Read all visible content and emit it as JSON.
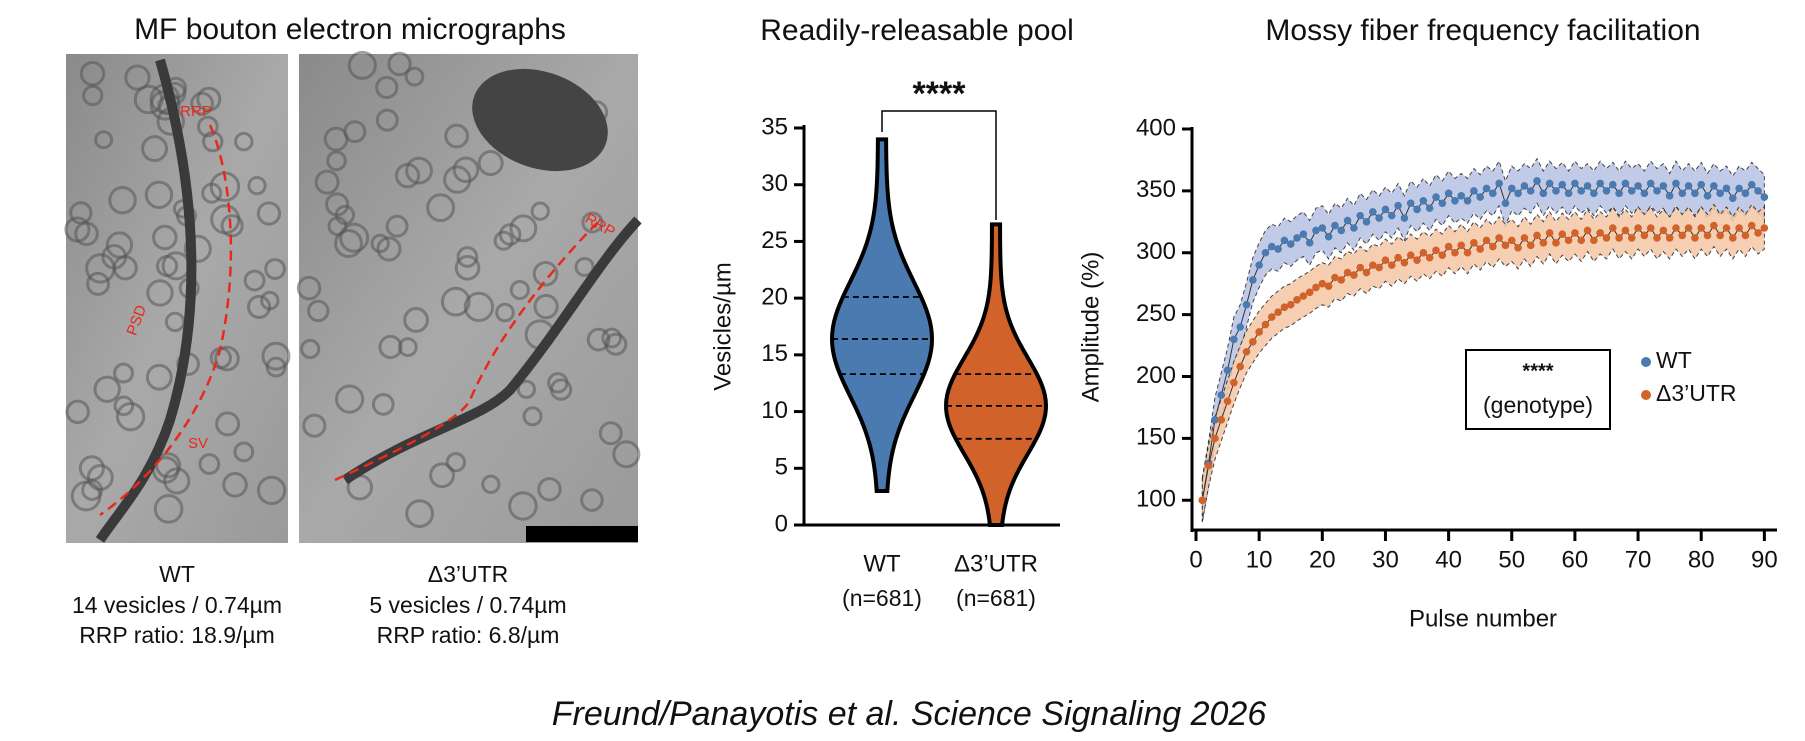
{
  "micrographs": {
    "title": "MF bouton electron micrographs",
    "annotations": [
      "RRP",
      "PSD",
      "SV",
      "RRP"
    ],
    "panels": [
      {
        "label": "WT",
        "vesicles": "14 vesicles / 0.74µm",
        "ratio": "RRP ratio: 18.9/µm"
      },
      {
        "label": "Δ3’UTR",
        "vesicles": "5 vesicles / 0.74µm",
        "ratio": "RRP ratio: 6.8/µm"
      }
    ]
  },
  "chart_data": [
    {
      "type": "violin",
      "title": "Readily-releasable pool",
      "ylabel": "Vesicles/µm",
      "categories": [
        "WT",
        "Δ3’UTR"
      ],
      "sublabels": [
        "(n=681)",
        "(n=681)"
      ],
      "colors": [
        "#4a7ab0",
        "#d1622a"
      ],
      "min": [
        3,
        0
      ],
      "q1": [
        13.3,
        7.6
      ],
      "median": [
        16.4,
        10.5
      ],
      "q3": [
        20.1,
        13.3
      ],
      "max": [
        34,
        26.5
      ],
      "significance": "****",
      "ylim": [
        0,
        35
      ],
      "yticks": [
        0,
        5,
        10,
        15,
        20,
        25,
        30,
        35
      ]
    },
    {
      "type": "line",
      "title": "Mossy fiber frequency facilitation",
      "xlabel": "Pulse number",
      "ylabel": "Amplitude (%)",
      "annotation": [
        "****",
        "(genotype)"
      ],
      "legend": "right",
      "x": [
        1,
        2,
        3,
        4,
        5,
        6,
        7,
        8,
        9,
        10,
        11,
        12,
        13,
        14,
        15,
        16,
        17,
        18,
        19,
        20,
        21,
        22,
        23,
        24,
        25,
        26,
        27,
        28,
        29,
        30,
        31,
        32,
        33,
        34,
        35,
        36,
        37,
        38,
        39,
        40,
        41,
        42,
        43,
        44,
        45,
        46,
        47,
        48,
        49,
        50,
        51,
        52,
        53,
        54,
        55,
        56,
        57,
        58,
        59,
        60,
        61,
        62,
        63,
        64,
        65,
        66,
        67,
        68,
        69,
        70,
        71,
        72,
        73,
        74,
        75,
        76,
        77,
        78,
        79,
        80,
        81,
        82,
        83,
        84,
        85,
        86,
        87,
        88,
        89,
        90
      ],
      "series": [
        {
          "name": "WT",
          "color": "#4a7ab0",
          "band": "#b7c3e3",
          "error": 18,
          "values": [
            100,
            130,
            165,
            185,
            205,
            230,
            240,
            258,
            278,
            290,
            300,
            305,
            303,
            310,
            307,
            312,
            315,
            308,
            318,
            320,
            313,
            322,
            318,
            326,
            320,
            330,
            325,
            333,
            328,
            335,
            330,
            338,
            328,
            340,
            335,
            342,
            336,
            345,
            340,
            348,
            342,
            346,
            342,
            350,
            345,
            352,
            348,
            356,
            340,
            352,
            348,
            354,
            350,
            358,
            348,
            356,
            350,
            355,
            348,
            356,
            350,
            354,
            348,
            356,
            350,
            355,
            348,
            356,
            350,
            354,
            348,
            356,
            350,
            354,
            346,
            356,
            348,
            354,
            348,
            355,
            346,
            354,
            348,
            352,
            344,
            352,
            348,
            355,
            350,
            345
          ]
        },
        {
          "name": "Δ3’UTR",
          "color": "#d1622a",
          "band": "#f5c7a6",
          "error": 17,
          "values": [
            100,
            128,
            150,
            165,
            180,
            195,
            208,
            220,
            228,
            236,
            242,
            248,
            252,
            256,
            258,
            262,
            265,
            268,
            272,
            275,
            273,
            280,
            278,
            284,
            282,
            288,
            284,
            290,
            288,
            294,
            290,
            296,
            292,
            298,
            294,
            300,
            296,
            302,
            298,
            305,
            300,
            306,
            300,
            308,
            303,
            310,
            305,
            312,
            306,
            310,
            304,
            312,
            306,
            314,
            308,
            316,
            308,
            315,
            310,
            316,
            310,
            318,
            310,
            316,
            312,
            320,
            312,
            318,
            312,
            320,
            314,
            320,
            312,
            318,
            312,
            320,
            314,
            320,
            312,
            320,
            314,
            322,
            314,
            320,
            312,
            320,
            314,
            322,
            316,
            320
          ]
        }
      ],
      "xlim": [
        0,
        92
      ],
      "xticks": [
        0,
        10,
        20,
        30,
        40,
        50,
        60,
        70,
        80,
        90
      ],
      "ylim": [
        80,
        400
      ],
      "yticks": [
        100,
        150,
        200,
        250,
        300,
        350,
        400
      ]
    }
  ],
  "citation": "Freund/Panayotis et al. Science Signaling 2026"
}
